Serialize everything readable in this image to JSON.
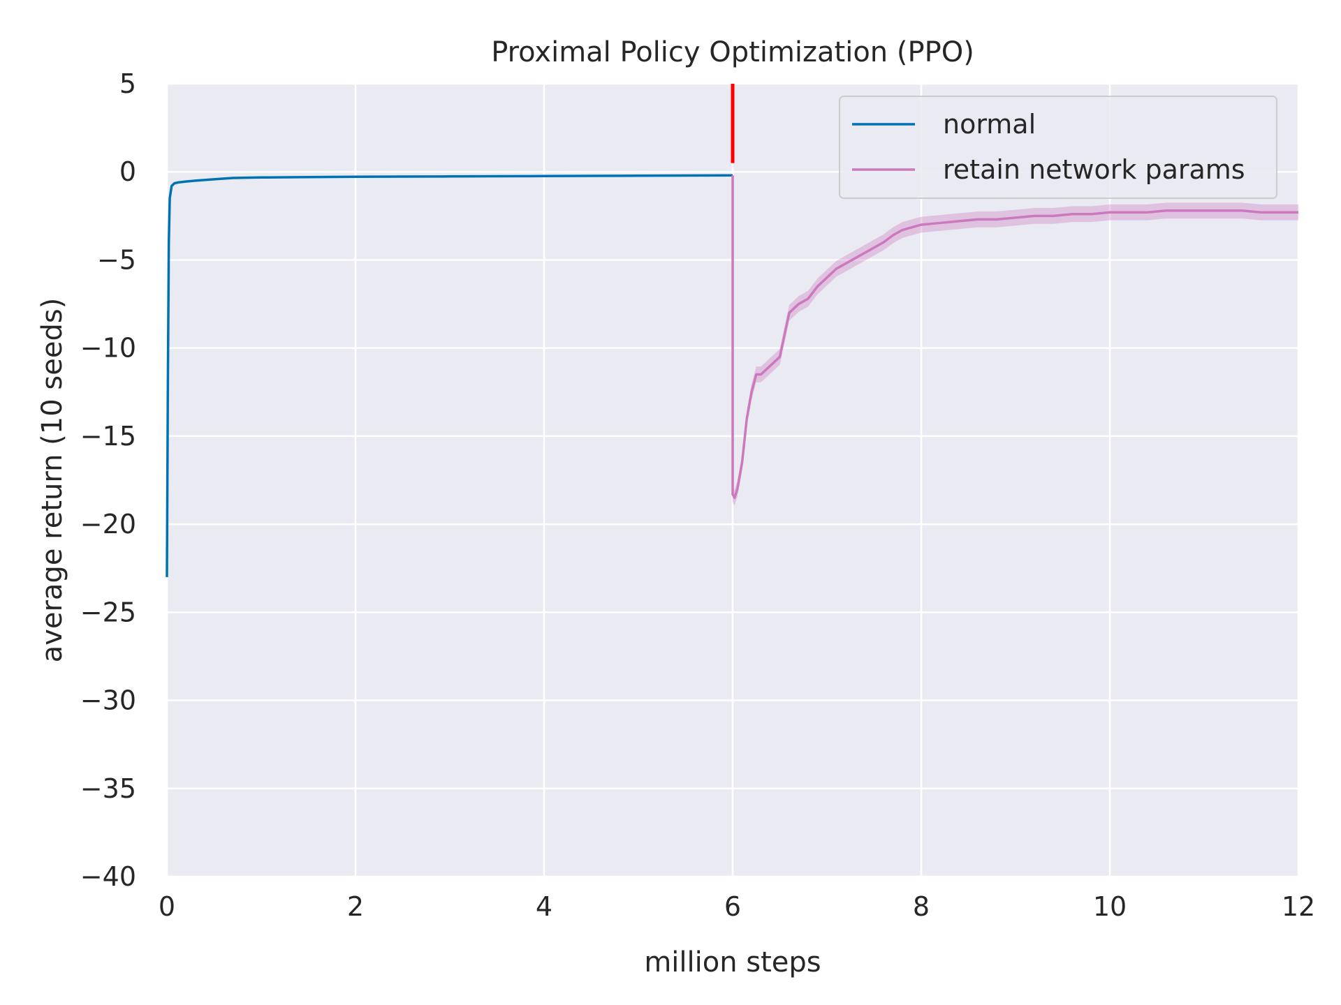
{
  "chart_data": {
    "type": "line",
    "title": "Proximal Policy Optimization (PPO)",
    "xlabel": "million steps",
    "ylabel": "average return (10 seeds)",
    "xlim": [
      0,
      12
    ],
    "ylim": [
      -40,
      5
    ],
    "xticks": [
      0,
      2,
      4,
      6,
      8,
      10,
      12
    ],
    "xtick_labels": [
      "0",
      "2",
      "4",
      "6",
      "8",
      "10",
      "12"
    ],
    "yticks": [
      5,
      0,
      -5,
      -10,
      -15,
      -20,
      -25,
      -30,
      -35,
      -40
    ],
    "ytick_labels": [
      "5",
      "0",
      "−5",
      "−10",
      "−15",
      "−20",
      "−25",
      "−30",
      "−35",
      "−40"
    ],
    "grid": true,
    "background": "#eaeaf2",
    "legend_position": "top-right",
    "vline": {
      "x": 6,
      "y_range": [
        0.5,
        5
      ],
      "color": "#ff0000"
    },
    "series": [
      {
        "name": "normal",
        "color": "#0072b2",
        "x": [
          0,
          0.01,
          0.02,
          0.03,
          0.05,
          0.08,
          0.12,
          0.2,
          0.3,
          0.5,
          0.7,
          1.0,
          1.5,
          2.0,
          2.5,
          3.0,
          3.5,
          4.0,
          4.5,
          5.0,
          5.5,
          6.0
        ],
        "y": [
          -23,
          -12,
          -4,
          -1.5,
          -0.8,
          -0.65,
          -0.6,
          -0.55,
          -0.5,
          -0.42,
          -0.35,
          -0.32,
          -0.3,
          -0.28,
          -0.27,
          -0.26,
          -0.25,
          -0.24,
          -0.23,
          -0.22,
          -0.21,
          -0.2
        ]
      },
      {
        "name": "retain network params",
        "color": "#cc78bc",
        "x": [
          6.0,
          6.0,
          6.02,
          6.05,
          6.1,
          6.15,
          6.2,
          6.25,
          6.3,
          6.4,
          6.5,
          6.6,
          6.7,
          6.8,
          6.9,
          7.0,
          7.1,
          7.2,
          7.3,
          7.4,
          7.5,
          7.6,
          7.7,
          7.8,
          8.0,
          8.2,
          8.4,
          8.6,
          8.8,
          9.0,
          9.2,
          9.4,
          9.6,
          9.8,
          10.0,
          10.2,
          10.4,
          10.6,
          10.8,
          11.0,
          11.2,
          11.4,
          11.6,
          11.8,
          12.0
        ],
        "y": [
          -0.2,
          -18.3,
          -18.5,
          -18.0,
          -16.5,
          -14.0,
          -12.5,
          -11.5,
          -11.5,
          -11.0,
          -10.5,
          -8.0,
          -7.5,
          -7.2,
          -6.5,
          -6.0,
          -5.5,
          -5.2,
          -4.9,
          -4.6,
          -4.3,
          -4.0,
          -3.6,
          -3.3,
          -3.0,
          -2.9,
          -2.8,
          -2.7,
          -2.7,
          -2.6,
          -2.5,
          -2.5,
          -2.4,
          -2.4,
          -2.3,
          -2.3,
          -2.3,
          -2.2,
          -2.2,
          -2.2,
          -2.2,
          -2.2,
          -2.3,
          -2.3,
          -2.3
        ],
        "band": 0.45
      }
    ]
  }
}
